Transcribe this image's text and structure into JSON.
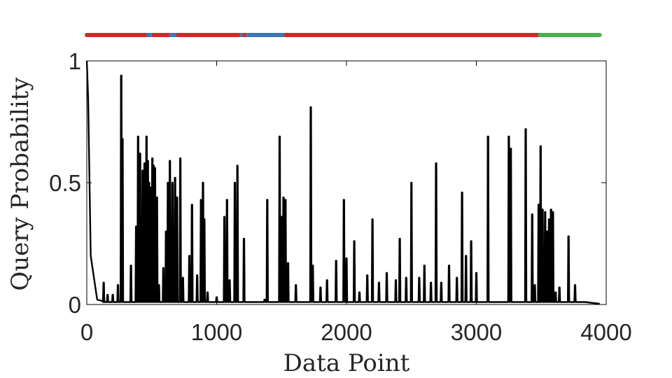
{
  "chart_data": {
    "type": "line",
    "title": "",
    "xlabel": "Data Point",
    "ylabel": "Query Probability",
    "xlim": [
      0,
      4000
    ],
    "ylim": [
      0,
      1
    ],
    "xticks": [
      0,
      1000,
      2000,
      3000,
      4000
    ],
    "xtick_labels": [
      "0",
      "1000",
      "2000",
      "3000",
      "4000"
    ],
    "yticks": [
      0,
      0.5,
      1
    ],
    "ytick_labels": [
      "0",
      "0.5",
      "1"
    ],
    "grid": false,
    "series": [
      {
        "color": "#000000",
        "baseline": 0.01,
        "initial_decay": {
          "x": [
            0,
            10,
            30,
            80,
            150
          ],
          "y": [
            1,
            0.85,
            0.2,
            0.02,
            0.01
          ]
        },
        "peaks": [
          [
            130,
            0.09
          ],
          [
            160,
            0.04
          ],
          [
            200,
            0.04
          ],
          [
            240,
            0.08
          ],
          [
            265,
            0.94
          ],
          [
            275,
            0.68
          ],
          [
            340,
            0.16
          ],
          [
            380,
            0.32
          ],
          [
            395,
            0.69
          ],
          [
            410,
            0.62
          ],
          [
            430,
            0.55
          ],
          [
            445,
            0.58
          ],
          [
            460,
            0.69
          ],
          [
            470,
            0.59
          ],
          [
            480,
            0.5
          ],
          [
            495,
            0.48
          ],
          [
            505,
            0.6
          ],
          [
            515,
            0.57
          ],
          [
            525,
            0.56
          ],
          [
            540,
            0.44
          ],
          [
            555,
            0.08
          ],
          [
            590,
            0.15
          ],
          [
            610,
            0.3
          ],
          [
            625,
            0.5
          ],
          [
            640,
            0.59
          ],
          [
            660,
            0.5
          ],
          [
            680,
            0.52
          ],
          [
            695,
            0.44
          ],
          [
            720,
            0.6
          ],
          [
            740,
            0.11
          ],
          [
            790,
            0.2
          ],
          [
            810,
            0.41
          ],
          [
            850,
            0.12
          ],
          [
            880,
            0.43
          ],
          [
            895,
            0.5
          ],
          [
            905,
            0.35
          ],
          [
            930,
            0.05
          ],
          [
            1000,
            0.03
          ],
          [
            1060,
            0.36
          ],
          [
            1080,
            0.43
          ],
          [
            1100,
            0.1
          ],
          [
            1140,
            0.5
          ],
          [
            1160,
            0.57
          ],
          [
            1210,
            0.27
          ],
          [
            1370,
            0.02
          ],
          [
            1390,
            0.43
          ],
          [
            1485,
            0.69
          ],
          [
            1500,
            0.36
          ],
          [
            1515,
            0.44
          ],
          [
            1530,
            0.43
          ],
          [
            1550,
            0.17
          ],
          [
            1610,
            0.08
          ],
          [
            1725,
            0.81
          ],
          [
            1740,
            0.16
          ],
          [
            1800,
            0.07
          ],
          [
            1850,
            0.1
          ],
          [
            1920,
            0.18
          ],
          [
            1980,
            0.43
          ],
          [
            2000,
            0.19
          ],
          [
            2060,
            0.26
          ],
          [
            2100,
            0.05
          ],
          [
            2160,
            0.12
          ],
          [
            2200,
            0.35
          ],
          [
            2250,
            0.09
          ],
          [
            2310,
            0.13
          ],
          [
            2380,
            0.1
          ],
          [
            2410,
            0.27
          ],
          [
            2460,
            0.11
          ],
          [
            2500,
            0.5
          ],
          [
            2560,
            0.11
          ],
          [
            2600,
            0.16
          ],
          [
            2650,
            0.09
          ],
          [
            2690,
            0.58
          ],
          [
            2730,
            0.09
          ],
          [
            2790,
            0.16
          ],
          [
            2850,
            0.11
          ],
          [
            2890,
            0.46
          ],
          [
            2920,
            0.2
          ],
          [
            2960,
            0.26
          ],
          [
            3000,
            0.13
          ],
          [
            3090,
            0.69
          ],
          [
            3250,
            0.69
          ],
          [
            3265,
            0.64
          ],
          [
            3380,
            0.72
          ],
          [
            3430,
            0.37
          ],
          [
            3450,
            0.08
          ],
          [
            3480,
            0.41
          ],
          [
            3495,
            0.65
          ],
          [
            3510,
            0.39
          ],
          [
            3530,
            0.38
          ],
          [
            3545,
            0.3
          ],
          [
            3560,
            0.35
          ],
          [
            3575,
            0.39
          ],
          [
            3590,
            0.38
          ],
          [
            3610,
            0.05
          ],
          [
            3640,
            0.07
          ],
          [
            3710,
            0.28
          ],
          [
            3760,
            0.08
          ],
          [
            3830,
            0.01
          ]
        ]
      }
    ],
    "label_strip": {
      "colors": {
        "red": "#d62728",
        "blue": "#3a78b5",
        "green": "#4caf50"
      },
      "segments": [
        [
          "red",
          0,
          460
        ],
        [
          "blue",
          460,
          500
        ],
        [
          "red",
          500,
          640
        ],
        [
          "blue",
          640,
          690
        ],
        [
          "red",
          690,
          1180
        ],
        [
          "blue",
          1180,
          1200
        ],
        [
          "red",
          1200,
          1230
        ],
        [
          "blue",
          1230,
          1520
        ],
        [
          "red",
          1520,
          3490
        ],
        [
          "green",
          3490,
          3950
        ]
      ]
    }
  }
}
